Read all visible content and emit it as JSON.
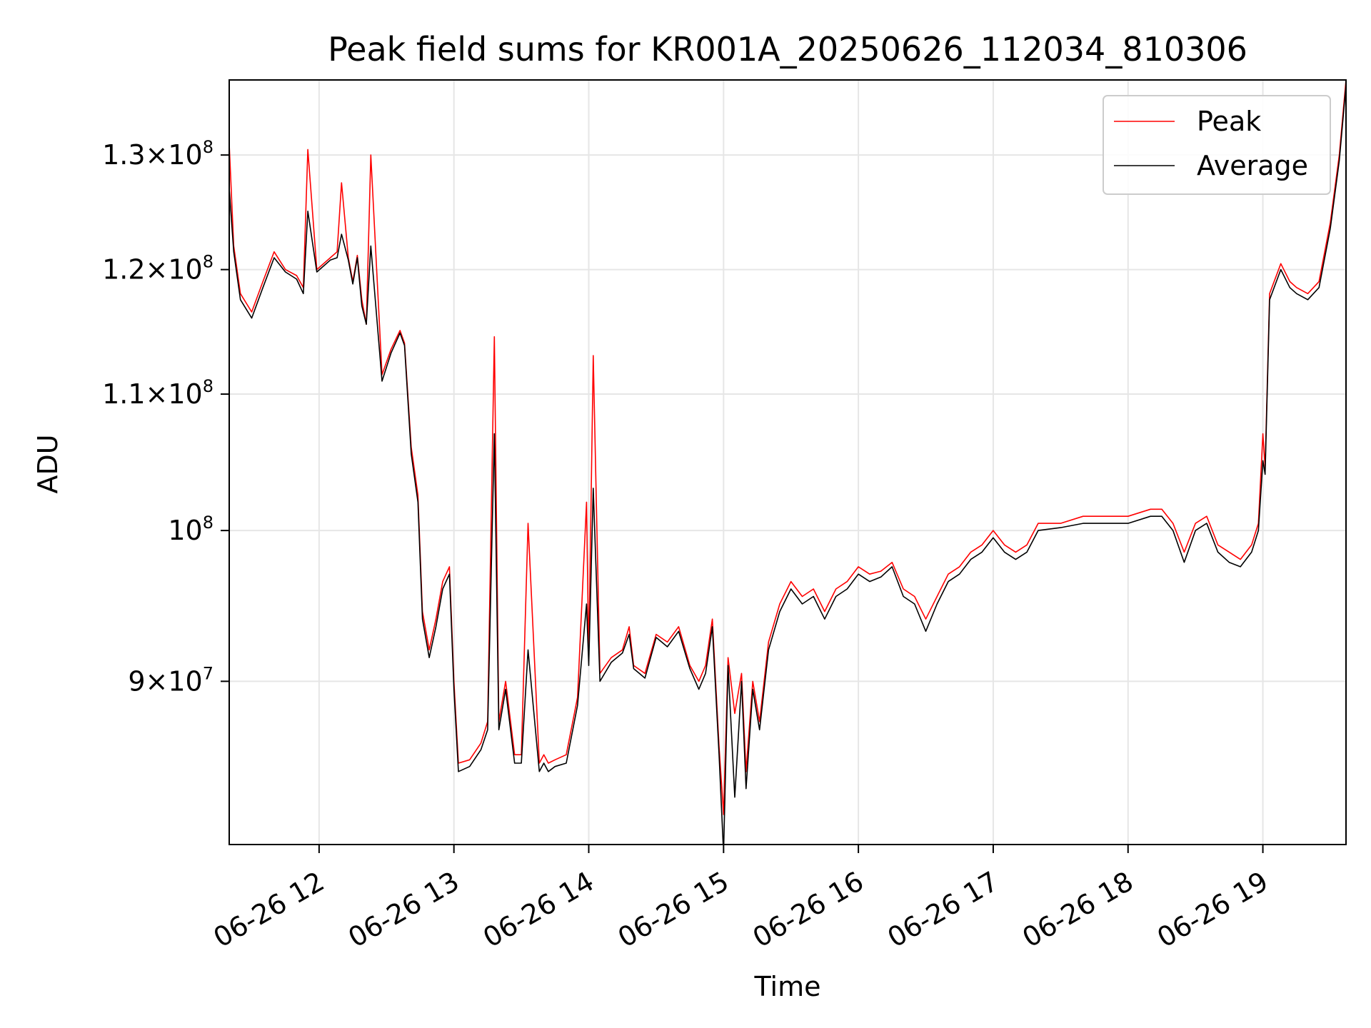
{
  "chart_data": {
    "type": "line",
    "title": "Peak field sums for KR001A_20250626_112034_810306",
    "xlabel": "Time",
    "ylabel": "ADU",
    "x_type": "datetime",
    "xlim": [
      "2025-06-26 11:20",
      "2025-06-26 19:37"
    ],
    "ylim": [
      80300000,
      137000000
    ],
    "yscale": "log",
    "grid": true,
    "legend_position": "top-right",
    "x_ticks": [
      {
        "t": "2025-06-26 12:00",
        "label": "06-26 12"
      },
      {
        "t": "2025-06-26 13:00",
        "label": "06-26 13"
      },
      {
        "t": "2025-06-26 14:00",
        "label": "06-26 14"
      },
      {
        "t": "2025-06-26 15:00",
        "label": "06-26 15"
      },
      {
        "t": "2025-06-26 16:00",
        "label": "06-26 16"
      },
      {
        "t": "2025-06-26 17:00",
        "label": "06-26 17"
      },
      {
        "t": "2025-06-26 18:00",
        "label": "06-26 18"
      },
      {
        "t": "2025-06-26 19:00",
        "label": "06-26 19"
      }
    ],
    "y_ticks": [
      {
        "value": 130000000,
        "mantissa": "1.3",
        "base": "10",
        "exp": "8"
      },
      {
        "value": 120000000,
        "mantissa": "1.2",
        "base": "10",
        "exp": "8"
      },
      {
        "value": 110000000,
        "mantissa": "1.1",
        "base": "10",
        "exp": "8"
      },
      {
        "value": 100000000,
        "mantissa": "",
        "base": "10",
        "exp": "8"
      },
      {
        "value": 90000000,
        "mantissa": "9",
        "base": "10",
        "exp": "7"
      }
    ],
    "series": [
      {
        "name": "Peak",
        "color": "#ff0000",
        "x": [
          "2025-06-26 11:20",
          "2025-06-26 11:22",
          "2025-06-26 11:25",
          "2025-06-26 11:30",
          "2025-06-26 11:35",
          "2025-06-26 11:40",
          "2025-06-26 11:45",
          "2025-06-26 11:50",
          "2025-06-26 11:53",
          "2025-06-26 11:55",
          "2025-06-26 11:59",
          "2025-06-26 12:05",
          "2025-06-26 12:08",
          "2025-06-26 12:10",
          "2025-06-26 12:13",
          "2025-06-26 12:15",
          "2025-06-26 12:17",
          "2025-06-26 12:19",
          "2025-06-26 12:21",
          "2025-06-26 12:23",
          "2025-06-26 12:28",
          "2025-06-26 12:32",
          "2025-06-26 12:36",
          "2025-06-26 12:38",
          "2025-06-26 12:41",
          "2025-06-26 12:44",
          "2025-06-26 12:46",
          "2025-06-26 12:49",
          "2025-06-26 12:52",
          "2025-06-26 12:55",
          "2025-06-26 12:58",
          "2025-06-26 13:00",
          "2025-06-26 13:02",
          "2025-06-26 13:07",
          "2025-06-26 13:12",
          "2025-06-26 13:15",
          "2025-06-26 13:18",
          "2025-06-26 13:20",
          "2025-06-26 13:23",
          "2025-06-26 13:27",
          "2025-06-26 13:30",
          "2025-06-26 13:33",
          "2025-06-26 13:38",
          "2025-06-26 13:40",
          "2025-06-26 13:42",
          "2025-06-26 13:45",
          "2025-06-26 13:50",
          "2025-06-26 13:55",
          "2025-06-26 13:59",
          "2025-06-26 14:00",
          "2025-06-26 14:02",
          "2025-06-26 14:05",
          "2025-06-26 14:10",
          "2025-06-26 14:15",
          "2025-06-26 14:18",
          "2025-06-26 14:20",
          "2025-06-26 14:25",
          "2025-06-26 14:30",
          "2025-06-26 14:35",
          "2025-06-26 14:40",
          "2025-06-26 14:45",
          "2025-06-26 14:49",
          "2025-06-26 14:52",
          "2025-06-26 14:55",
          "2025-06-26 14:58",
          "2025-06-26 15:00",
          "2025-06-26 15:02",
          "2025-06-26 15:05",
          "2025-06-26 15:08",
          "2025-06-26 15:10",
          "2025-06-26 15:13",
          "2025-06-26 15:16",
          "2025-06-26 15:20",
          "2025-06-26 15:25",
          "2025-06-26 15:30",
          "2025-06-26 15:35",
          "2025-06-26 15:40",
          "2025-06-26 15:45",
          "2025-06-26 15:50",
          "2025-06-26 15:55",
          "2025-06-26 16:00",
          "2025-06-26 16:05",
          "2025-06-26 16:10",
          "2025-06-26 16:15",
          "2025-06-26 16:20",
          "2025-06-26 16:25",
          "2025-06-26 16:30",
          "2025-06-26 16:35",
          "2025-06-26 16:40",
          "2025-06-26 16:45",
          "2025-06-26 16:50",
          "2025-06-26 16:55",
          "2025-06-26 17:00",
          "2025-06-26 17:05",
          "2025-06-26 17:10",
          "2025-06-26 17:15",
          "2025-06-26 17:20",
          "2025-06-26 17:30",
          "2025-06-26 17:40",
          "2025-06-26 17:50",
          "2025-06-26 18:00",
          "2025-06-26 18:10",
          "2025-06-26 18:15",
          "2025-06-26 18:20",
          "2025-06-26 18:25",
          "2025-06-26 18:30",
          "2025-06-26 18:35",
          "2025-06-26 18:40",
          "2025-06-26 18:45",
          "2025-06-26 18:50",
          "2025-06-26 18:55",
          "2025-06-26 18:58",
          "2025-06-26 19:00",
          "2025-06-26 19:01",
          "2025-06-26 19:03",
          "2025-06-26 19:08",
          "2025-06-26 19:12",
          "2025-06-26 19:15",
          "2025-06-26 19:20",
          "2025-06-26 19:25",
          "2025-06-26 19:30",
          "2025-06-26 19:34",
          "2025-06-26 19:37"
        ],
        "y": [
          131000000,
          122000000,
          118000000,
          116500000,
          119000000,
          121500000,
          120000000,
          119500000,
          118500000,
          130500000,
          120000000,
          121000000,
          121500000,
          127500000,
          121000000,
          119000000,
          121200000,
          117500000,
          115500000,
          130000000,
          111500000,
          113500000,
          115000000,
          114000000,
          106000000,
          102500000,
          94500000,
          92000000,
          94000000,
          96500000,
          97500000,
          90000000,
          85000000,
          85200000,
          86200000,
          87500000,
          114500000,
          87500000,
          90000000,
          85500000,
          85500000,
          100500000,
          85000000,
          85500000,
          85000000,
          85200000,
          85500000,
          89000000,
          102000000,
          91500000,
          113000000,
          90500000,
          91500000,
          92000000,
          93500000,
          91000000,
          90500000,
          93000000,
          92500000,
          93500000,
          91000000,
          90000000,
          91000000,
          94000000,
          86000000,
          82000000,
          91500000,
          88000000,
          90500000,
          84500000,
          90000000,
          87500000,
          92500000,
          95000000,
          96500000,
          95500000,
          96000000,
          94500000,
          96000000,
          96500000,
          97500000,
          97000000,
          97200000,
          97800000,
          96000000,
          95500000,
          94000000,
          95500000,
          97000000,
          97500000,
          98500000,
          99000000,
          100000000,
          99000000,
          98500000,
          99000000,
          100500000,
          100500000,
          101000000,
          101000000,
          101000000,
          101500000,
          101500000,
          100500000,
          98500000,
          100500000,
          101000000,
          99000000,
          98500000,
          98000000,
          99000000,
          100500000,
          107000000,
          104500000,
          118000000,
          120500000,
          119000000,
          118500000,
          118000000,
          119000000,
          124000000,
          130000000,
          137000000
        ]
      },
      {
        "name": "Average",
        "color": "#000000",
        "x": [
          "2025-06-26 11:20",
          "2025-06-26 11:22",
          "2025-06-26 11:25",
          "2025-06-26 11:30",
          "2025-06-26 11:35",
          "2025-06-26 11:40",
          "2025-06-26 11:45",
          "2025-06-26 11:50",
          "2025-06-26 11:53",
          "2025-06-26 11:55",
          "2025-06-26 11:59",
          "2025-06-26 12:05",
          "2025-06-26 12:08",
          "2025-06-26 12:10",
          "2025-06-26 12:13",
          "2025-06-26 12:15",
          "2025-06-26 12:17",
          "2025-06-26 12:19",
          "2025-06-26 12:21",
          "2025-06-26 12:23",
          "2025-06-26 12:28",
          "2025-06-26 12:32",
          "2025-06-26 12:36",
          "2025-06-26 12:38",
          "2025-06-26 12:41",
          "2025-06-26 12:44",
          "2025-06-26 12:46",
          "2025-06-26 12:49",
          "2025-06-26 12:52",
          "2025-06-26 12:55",
          "2025-06-26 12:58",
          "2025-06-26 13:00",
          "2025-06-26 13:02",
          "2025-06-26 13:07",
          "2025-06-26 13:12",
          "2025-06-26 13:15",
          "2025-06-26 13:18",
          "2025-06-26 13:20",
          "2025-06-26 13:23",
          "2025-06-26 13:27",
          "2025-06-26 13:30",
          "2025-06-26 13:33",
          "2025-06-26 13:38",
          "2025-06-26 13:40",
          "2025-06-26 13:42",
          "2025-06-26 13:45",
          "2025-06-26 13:50",
          "2025-06-26 13:55",
          "2025-06-26 13:59",
          "2025-06-26 14:00",
          "2025-06-26 14:02",
          "2025-06-26 14:05",
          "2025-06-26 14:10",
          "2025-06-26 14:15",
          "2025-06-26 14:18",
          "2025-06-26 14:20",
          "2025-06-26 14:25",
          "2025-06-26 14:30",
          "2025-06-26 14:35",
          "2025-06-26 14:40",
          "2025-06-26 14:45",
          "2025-06-26 14:49",
          "2025-06-26 14:52",
          "2025-06-26 14:55",
          "2025-06-26 14:58",
          "2025-06-26 15:00",
          "2025-06-26 15:02",
          "2025-06-26 15:05",
          "2025-06-26 15:08",
          "2025-06-26 15:10",
          "2025-06-26 15:13",
          "2025-06-26 15:16",
          "2025-06-26 15:20",
          "2025-06-26 15:25",
          "2025-06-26 15:30",
          "2025-06-26 15:35",
          "2025-06-26 15:40",
          "2025-06-26 15:45",
          "2025-06-26 15:50",
          "2025-06-26 15:55",
          "2025-06-26 16:00",
          "2025-06-26 16:05",
          "2025-06-26 16:10",
          "2025-06-26 16:15",
          "2025-06-26 16:20",
          "2025-06-26 16:25",
          "2025-06-26 16:30",
          "2025-06-26 16:35",
          "2025-06-26 16:40",
          "2025-06-26 16:45",
          "2025-06-26 16:50",
          "2025-06-26 16:55",
          "2025-06-26 17:00",
          "2025-06-26 17:05",
          "2025-06-26 17:10",
          "2025-06-26 17:15",
          "2025-06-26 17:20",
          "2025-06-26 17:30",
          "2025-06-26 17:40",
          "2025-06-26 17:50",
          "2025-06-26 18:00",
          "2025-06-26 18:10",
          "2025-06-26 18:15",
          "2025-06-26 18:20",
          "2025-06-26 18:25",
          "2025-06-26 18:30",
          "2025-06-26 18:35",
          "2025-06-26 18:40",
          "2025-06-26 18:45",
          "2025-06-26 18:50",
          "2025-06-26 18:55",
          "2025-06-26 18:58",
          "2025-06-26 19:00",
          "2025-06-26 19:01",
          "2025-06-26 19:03",
          "2025-06-26 19:08",
          "2025-06-26 19:12",
          "2025-06-26 19:15",
          "2025-06-26 19:20",
          "2025-06-26 19:25",
          "2025-06-26 19:30",
          "2025-06-26 19:34",
          "2025-06-26 19:37"
        ],
        "y": [
          127000000,
          121500000,
          117500000,
          116000000,
          118500000,
          121000000,
          119800000,
          119200000,
          118000000,
          125000000,
          119800000,
          120800000,
          121000000,
          123000000,
          120800000,
          118800000,
          121000000,
          117000000,
          115500000,
          122000000,
          111000000,
          113200000,
          114800000,
          113800000,
          105500000,
          102000000,
          94000000,
          91500000,
          93500000,
          96000000,
          97000000,
          89500000,
          84500000,
          84800000,
          85800000,
          87000000,
          107000000,
          87000000,
          89500000,
          85000000,
          85000000,
          92000000,
          84500000,
          85000000,
          84500000,
          84800000,
          85000000,
          88500000,
          95000000,
          91000000,
          103000000,
          90000000,
          91200000,
          91800000,
          93000000,
          90800000,
          90200000,
          92800000,
          92200000,
          93200000,
          90800000,
          89500000,
          90500000,
          93500000,
          85500000,
          79800000,
          91000000,
          83000000,
          90000000,
          83500000,
          89500000,
          87000000,
          92000000,
          94500000,
          96000000,
          95000000,
          95500000,
          94000000,
          95500000,
          96000000,
          97000000,
          96500000,
          96800000,
          97500000,
          95500000,
          95000000,
          93200000,
          95000000,
          96500000,
          97000000,
          98000000,
          98500000,
          99500000,
          98500000,
          98000000,
          98500000,
          100000000,
          100200000,
          100500000,
          100500000,
          100500000,
          101000000,
          101000000,
          100000000,
          97800000,
          100000000,
          100500000,
          98500000,
          97800000,
          97500000,
          98500000,
          100000000,
          105000000,
          104000000,
          117500000,
          120000000,
          118500000,
          118000000,
          117500000,
          118500000,
          123500000,
          129500000,
          136500000
        ]
      }
    ]
  }
}
